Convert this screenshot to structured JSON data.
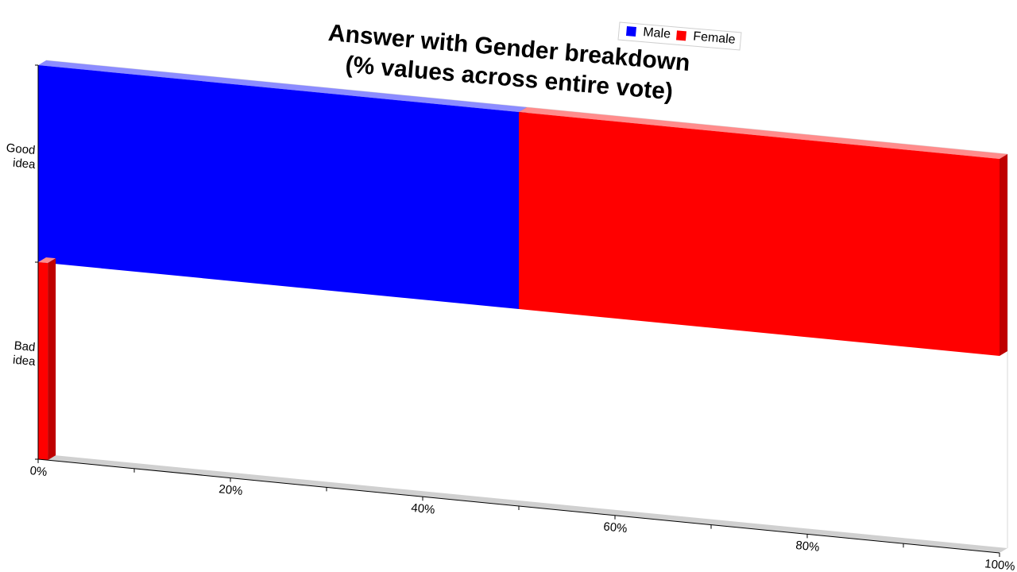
{
  "chart_data": {
    "type": "bar",
    "orientation": "horizontal",
    "stacked": true,
    "style": "3d",
    "title": [
      "Answer with Gender breakdown",
      "(% values across entire vote)"
    ],
    "categories": [
      "Good idea",
      "Bad idea"
    ],
    "category_lines": [
      [
        "Good",
        "idea"
      ],
      [
        "Bad",
        "idea"
      ]
    ],
    "series": [
      {
        "name": "Male",
        "color": "#0000ff",
        "values": [
          50,
          0
        ]
      },
      {
        "name": "Female",
        "color": "#ff0000",
        "values": [
          50,
          1
        ]
      }
    ],
    "xlim": [
      0,
      100
    ],
    "x_ticks": [
      0,
      20,
      40,
      60,
      80,
      100
    ],
    "x_tick_labels": [
      "0%",
      "20%",
      "40%",
      "60%",
      "80%",
      "100%"
    ],
    "legend": {
      "position": "top-right",
      "entries": [
        "Male",
        "Female"
      ]
    },
    "grid": false
  }
}
